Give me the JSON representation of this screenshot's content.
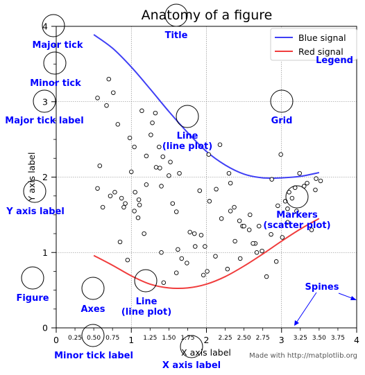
{
  "chart_data": {
    "type": "line",
    "title": "Anatomy of a figure",
    "xlabel": "X axis label",
    "ylabel": "Y axis label",
    "xlim": [
      0,
      4
    ],
    "ylim": [
      0,
      4
    ],
    "grid": true,
    "legend_position": "top-right",
    "major_x_ticks": [
      "0",
      "1",
      "2",
      "3",
      "4"
    ],
    "minor_x_ticks": [
      "0.25",
      "0.50",
      "0.75",
      "1.25",
      "1.50",
      "1.75",
      "2.25",
      "2.50",
      "2.75",
      "3.25",
      "3.50",
      "3.75"
    ],
    "major_y_ticks": [
      "0",
      "1",
      "2",
      "3",
      "4"
    ],
    "series": [
      {
        "name": "Blue signal",
        "color": "#3f3ff5",
        "x": [
          0.5,
          0.75,
          1.0,
          1.25,
          1.5,
          1.75,
          2.0,
          2.25,
          2.5,
          2.75,
          3.0,
          3.25,
          3.5
        ],
        "y": [
          3.89,
          3.71,
          3.46,
          3.17,
          2.87,
          2.59,
          2.34,
          2.16,
          2.04,
          1.99,
          1.99,
          2.01,
          2.06
        ]
      },
      {
        "name": "Red signal",
        "color": "#f03c3c",
        "x": [
          0.5,
          0.75,
          1.0,
          1.25,
          1.5,
          1.75,
          2.0,
          2.25,
          2.5,
          2.75,
          3.0,
          3.25,
          3.5
        ],
        "y": [
          0.96,
          0.83,
          0.69,
          0.58,
          0.53,
          0.53,
          0.58,
          0.68,
          0.82,
          0.98,
          1.15,
          1.31,
          1.45
        ]
      }
    ],
    "markers": {
      "label": "Markers (scatter plot)",
      "x": [
        0.7,
        0.55,
        0.67,
        0.82,
        1.04,
        0.58,
        0.72,
        0.92,
        1.04,
        1.1,
        1.2,
        1.38,
        1.52,
        0.78,
        0.55,
        1.05,
        1.11,
        1.17,
        1.4,
        1.6,
        1.43,
        1.67,
        1.93,
        1.98,
        2.03,
        2.3,
        2.32,
        2.37,
        2.45,
        2.67,
        2.8,
        2.93,
        3.01,
        3.08,
        3.2,
        3.4,
        3.46,
        3.52,
        3.1,
        2.87,
        2.57,
        2.65,
        2.38,
        2.13,
        2.01,
        1.96,
        1.85,
        1.78,
        1.6,
        1.4,
        1.26,
        1.32,
        0.9,
        0.85,
        1.2,
        1.33,
        1.37,
        1.5,
        1.64,
        2.04,
        2.2,
        2.32,
        2.48,
        2.62,
        2.74,
        2.86,
        3.3,
        3.45,
        3.05,
        2.95,
        3.08,
        2.7,
        2.58,
        2.44,
        2.28,
        1.84,
        1.74,
        1.55,
        1.42,
        1.28,
        1.14,
        0.98,
        0.76,
        0.62,
        0.87,
        1.0,
        1.91,
        2.18,
        3.14,
        3.24,
        3.34,
        3.18,
        2.5,
        2.12,
        0.95,
        1.09,
        1.62,
        2.99
      ],
      "y": [
        3.3,
        3.05,
        2.95,
        2.7,
        2.4,
        2.15,
        1.75,
        1.65,
        1.55,
        1.7,
        1.9,
        2.12,
        2.2,
        1.8,
        1.85,
        1.8,
        1.63,
        1.25,
        1.0,
        0.73,
        0.6,
        0.92,
        1.23,
        1.08,
        2.3,
        2.05,
        1.55,
        1.6,
        0.92,
        1.0,
        0.68,
        0.88,
        1.2,
        1.4,
        1.55,
        1.3,
        1.98,
        1.95,
        1.8,
        1.97,
        1.3,
        1.12,
        1.15,
        1.84,
        0.75,
        0.7,
        1.08,
        1.27,
        1.54,
        1.88,
        2.56,
        2.85,
        1.6,
        1.14,
        2.28,
        2.13,
        2.4,
        2.02,
        2.05,
        1.68,
        1.45,
        1.92,
        1.35,
        1.12,
        1.02,
        1.24,
        1.88,
        1.83,
        1.68,
        1.62,
        1.58,
        1.35,
        1.5,
        1.42,
        0.78,
        1.25,
        0.86,
        1.65,
        2.27,
        2.72,
        2.88,
        2.52,
        3.12,
        1.6,
        1.72,
        2.07,
        1.82,
        2.43,
        1.72,
        2.05,
        1.92,
        1.86,
        1.35,
        0.95,
        0.9,
        1.46,
        1.04,
        2.3
      ]
    },
    "annotations": [
      {
        "id": "major-tick",
        "text": "Major tick"
      },
      {
        "id": "minor-tick",
        "text": "Minor tick"
      },
      {
        "id": "major-tick-label",
        "text": "Major tick label"
      },
      {
        "id": "y-axis-label",
        "text": "Y axis label"
      },
      {
        "id": "figure",
        "text": "Figure"
      },
      {
        "id": "axes",
        "text": "Axes"
      },
      {
        "id": "minor-tick-label",
        "text": "Minor tick label"
      },
      {
        "id": "x-axis-label",
        "text": "X axis label"
      },
      {
        "id": "title",
        "text": "Title"
      },
      {
        "id": "line-1",
        "text": "Line (line plot)"
      },
      {
        "id": "line-2",
        "text": "Line (line plot)"
      },
      {
        "id": "grid",
        "text": "Grid"
      },
      {
        "id": "legend",
        "text": "Legend"
      },
      {
        "id": "markers",
        "text": "Markers (scatter plot)"
      },
      {
        "id": "spines",
        "text": "Spines"
      }
    ],
    "footer": "Made with http://matplotlib.org"
  }
}
